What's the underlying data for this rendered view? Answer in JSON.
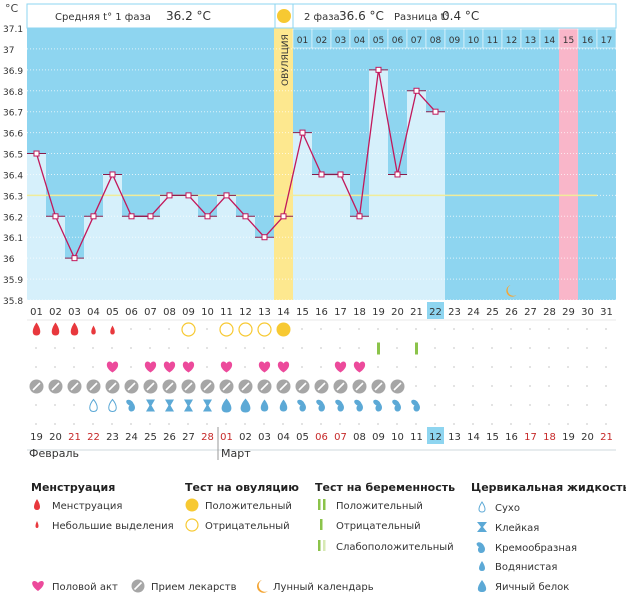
{
  "unit_label": "°C",
  "header": {
    "phase1_label": "Средняя t° 1 фаза",
    "phase1_value": "36.2 °C",
    "phase2_label": "2 фаза",
    "phase2_value": "36.6 °C",
    "diff_label": "Разница t°",
    "diff_value": "0.4 °C"
  },
  "ovulation_label": "ОВУЛЯЦИЯ",
  "chart_data": {
    "type": "line",
    "x": [
      "01",
      "02",
      "03",
      "04",
      "05",
      "06",
      "07",
      "08",
      "09",
      "10",
      "11",
      "12",
      "13",
      "14",
      "15",
      "16",
      "17",
      "18",
      "19",
      "20",
      "21",
      "22",
      "23",
      "24",
      "25",
      "26",
      "27",
      "28",
      "29",
      "30",
      "31"
    ],
    "values": [
      36.5,
      36.2,
      36.0,
      36.2,
      36.4,
      36.2,
      36.2,
      36.3,
      36.3,
      36.2,
      36.3,
      36.2,
      36.1,
      36.2,
      36.6,
      36.4,
      36.4,
      36.2,
      36.9,
      36.4,
      36.8,
      36.7,
      null,
      null,
      null,
      null,
      null,
      null,
      null,
      null,
      null
    ],
    "ylim": [
      35.8,
      37.1
    ],
    "yticks": [
      "35.8",
      "35.9",
      "36",
      "36.1",
      "36.2",
      "36.3",
      "36.4",
      "36.5",
      "36.6",
      "36.7",
      "36.8",
      "36.9",
      "37",
      "37.1"
    ],
    "coverline": 36.3,
    "ovulation_day": 14,
    "today_day": 22,
    "expected_period_day": 29,
    "top_day_numbers": [
      "01",
      "02",
      "03",
      "04",
      "05",
      "06",
      "07",
      "08",
      "09",
      "10",
      "11",
      "12",
      "13",
      "14",
      "15",
      "16",
      "17"
    ],
    "top_start_index": 14,
    "moon_day": 26,
    "colors": {
      "plot_bg": "#8ed5f0",
      "bar_fill": "#d6f0fb",
      "line": "#c2185b",
      "ovulation_band": "#fde88f",
      "period_band": "#f9b6c9",
      "coverline": "#f0ec9a",
      "today_box": "#8ed5f0"
    }
  },
  "dates": {
    "bottom": [
      "19",
      "20",
      "21",
      "22",
      "23",
      "24",
      "25",
      "26",
      "27",
      "28",
      "01",
      "02",
      "03",
      "04",
      "05",
      "06",
      "07",
      "08",
      "09",
      "10",
      "11",
      "12",
      "13",
      "14",
      "15",
      "16",
      "17",
      "18",
      "19",
      "20",
      "21"
    ],
    "red_indices": [
      2,
      3,
      9,
      10,
      15,
      16,
      26,
      27,
      30
    ],
    "today_index": 21,
    "month_feb": "Февраль",
    "month_mar": "Март",
    "month_mar_index": 10
  },
  "markers": {
    "menstruation_large": [
      1,
      2,
      3
    ],
    "menstruation_small": [
      4,
      5
    ],
    "ovulation_negative": [
      9,
      11,
      12,
      13
    ],
    "ovulation_positive": [
      14
    ],
    "pregnancy_tests": [
      19,
      21
    ],
    "intercourse": [
      5,
      7,
      8,
      9,
      11,
      13,
      14,
      17,
      18
    ],
    "medication": [
      1,
      2,
      3,
      4,
      5,
      6,
      7,
      8,
      9,
      10,
      11,
      12,
      13,
      14,
      15,
      16,
      17,
      18,
      19,
      20
    ],
    "cervical": [
      {
        "day": 4,
        "type": "dry"
      },
      {
        "day": 5,
        "type": "dry"
      },
      {
        "day": 6,
        "type": "creamy"
      },
      {
        "day": 7,
        "type": "sticky"
      },
      {
        "day": 8,
        "type": "sticky"
      },
      {
        "day": 9,
        "type": "sticky"
      },
      {
        "day": 10,
        "type": "sticky"
      },
      {
        "day": 11,
        "type": "eggwhite"
      },
      {
        "day": 12,
        "type": "eggwhite"
      },
      {
        "day": 13,
        "type": "watery"
      },
      {
        "day": 14,
        "type": "watery"
      },
      {
        "day": 15,
        "type": "creamy"
      },
      {
        "day": 16,
        "type": "creamy"
      },
      {
        "day": 17,
        "type": "creamy"
      },
      {
        "day": 18,
        "type": "creamy"
      },
      {
        "day": 19,
        "type": "creamy"
      },
      {
        "day": 20,
        "type": "creamy"
      },
      {
        "day": 21,
        "type": "creamy"
      }
    ]
  },
  "legend": {
    "menstruation": {
      "title": "Менструация",
      "items": [
        "Менструация",
        "Небольшие выделения"
      ]
    },
    "ovulation_test": {
      "title": "Тест на овуляцию",
      "items": [
        "Положительный",
        "Отрицательный"
      ]
    },
    "pregnancy_test": {
      "title": "Тест на беременность",
      "items": [
        "Положительный",
        "Отрицательный",
        "Слабоположительный"
      ]
    },
    "cervical": {
      "title": "Цервикальная жидкость",
      "items": [
        "Сухо",
        "Клейкая",
        "Кремообразная",
        "Водянистая",
        "Яичный белок"
      ]
    },
    "bottom": [
      "Половой акт",
      "Прием лекарств",
      "Лунный календарь"
    ]
  }
}
